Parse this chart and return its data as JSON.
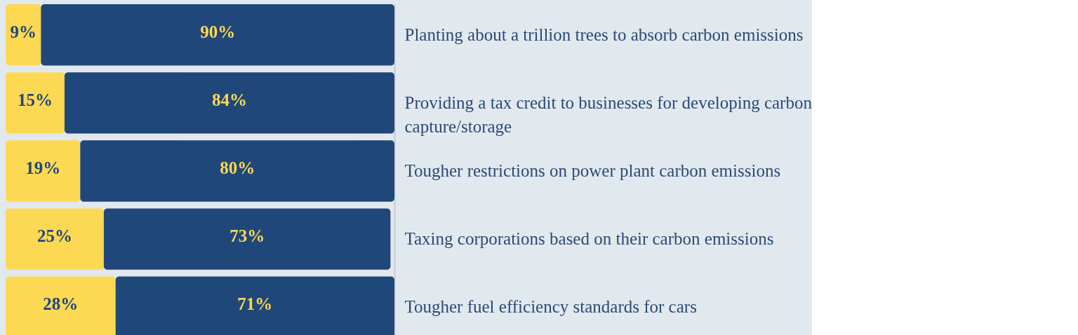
{
  "chart_data": {
    "type": "bar",
    "orientation": "horizontal",
    "stacked": true,
    "categories": [
      "Planting about a trillion trees to absorb carbon emissions",
      "Providing a tax credit to businesses for developing carbon capture/storage",
      "Tougher restrictions on power plant carbon emissions",
      "Taxing corporations based on their carbon emissions",
      "Tougher fuel efficiency standards for cars"
    ],
    "series": [
      {
        "color": "#fdd853",
        "values": [
          9,
          15,
          19,
          25,
          28
        ],
        "value_labels": [
          "9%",
          "15%",
          "19%",
          "25%",
          "28%"
        ]
      },
      {
        "color": "#1f477a",
        "values": [
          90,
          84,
          80,
          73,
          71
        ],
        "value_labels": [
          "90%",
          "84%",
          "80%",
          "73%",
          "71%"
        ]
      }
    ]
  }
}
